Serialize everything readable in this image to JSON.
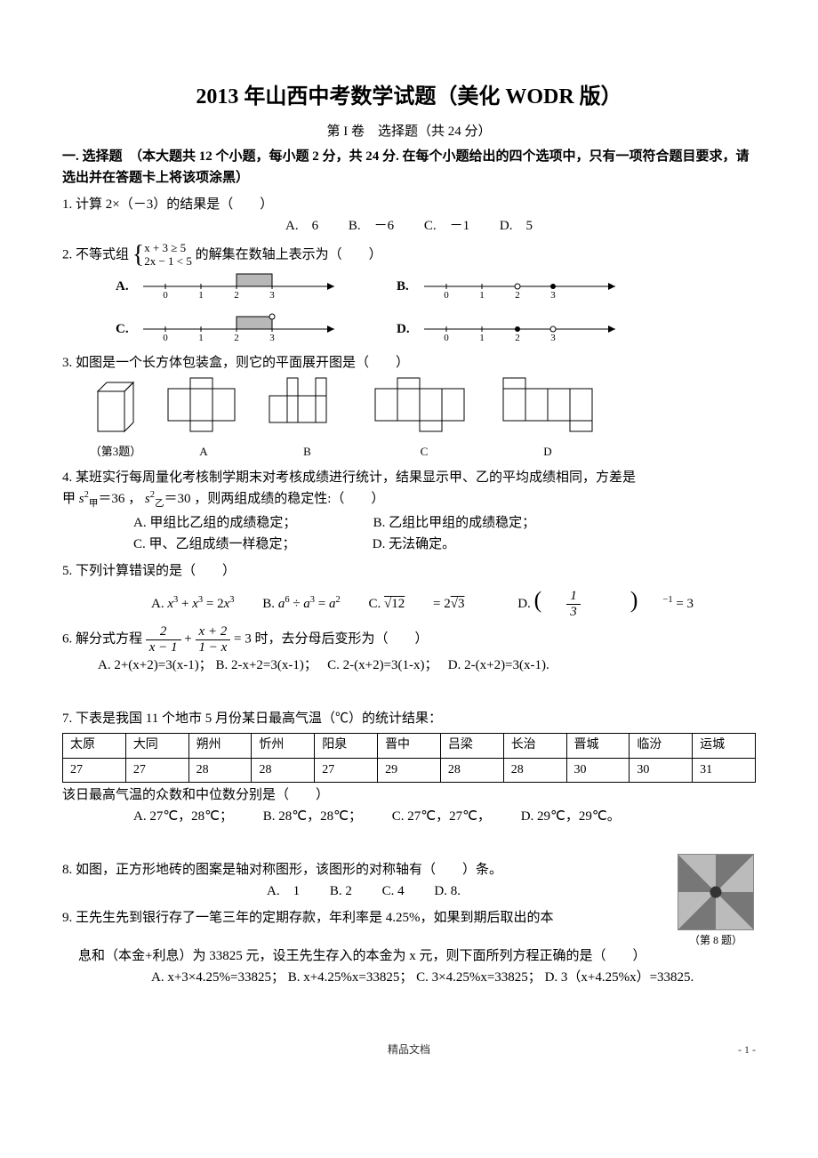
{
  "title": "2013 年山西中考数学试题（美化 WODR 版）",
  "subtitle": "第 I 卷　选择题（共 24 分）",
  "section1_head": "一. 选择题　（本大题共 12 个小题，每小题 2 分，共 24 分. 在每个小题给出的四个选项中，只有一项符合题目要求，请选出并在答题卡上将该项涂黑）",
  "q1": {
    "stem": "1. 计算 2×（－3）的结果是（　　）",
    "A": "A.　6",
    "B": "B.　－6",
    "C": "C.　－1",
    "D": "D.　5"
  },
  "q2": {
    "stem_a": "2. 不等式组",
    "line1": "x + 3 ≥ 5",
    "line2": "2x − 1 < 5",
    "stem_b": "的解集在数轴上表示为（　　）",
    "labels": {
      "A": "A.",
      "B": "B.",
      "C": "C.",
      "D": "D."
    },
    "ticks": [
      "0",
      "1",
      "2",
      "3"
    ]
  },
  "q3": {
    "stem": "3. 如图是一个长方体包装盒，则它的平面展开图是（　　）",
    "cap": "（第3题）",
    "labels": {
      "A": "A",
      "B": "B",
      "C": "C",
      "D": "D"
    }
  },
  "q4": {
    "stem_a": "4. 某班实行每周量化考核制学期末对考核成绩进行统计，结果显示甲、乙的平均成绩相同，方差是",
    "stem_b": "＝36 ，",
    "stem_c": "＝30 ，则两组成绩的稳定性:（　　）",
    "A": "A. 甲组比乙组的成绩稳定；",
    "B": "B. 乙组比甲组的成绩稳定；",
    "C": "C. 甲、乙组成绩一样稳定；",
    "D": "D. 无法确定。"
  },
  "q5": {
    "stem": "5. 下列计算错误的是（　　）"
  },
  "q6": {
    "stem_a": "6. 解分式方程",
    "stem_b": "时，去分母后变形为（　　）",
    "A": "A. 2+(x+2)=3(x-1)；",
    "B": "B. 2-x+2=3(x-1)；",
    "C": "C. 2-(x+2)=3(1-x)；",
    "D": "D. 2-(x+2)=3(x-1)."
  },
  "q7": {
    "stem": "7. 下表是我国 11 个地市 5 月份某日最高气温（℃）的统计结果：",
    "cities": [
      "太原",
      "大同",
      "朔州",
      "忻州",
      "阳泉",
      "晋中",
      "吕梁",
      "长治",
      "晋城",
      "临汾",
      "运城"
    ],
    "temps": [
      "27",
      "27",
      "28",
      "28",
      "27",
      "29",
      "28",
      "28",
      "30",
      "30",
      "31"
    ],
    "tail": "该日最高气温的众数和中位数分别是（　　）",
    "A": "A. 27℃，28℃；",
    "B": "B. 28℃，28℃；",
    "C": "C. 27℃，27℃，",
    "D": "D. 29℃，29℃。"
  },
  "q8": {
    "stem": "8. 如图，正方形地砖的图案是轴对称图形，该图形的对称轴有（　　）条。",
    "A": "A.　1",
    "B": "B. 2",
    "C": "C. 4",
    "D": "D. 8.",
    "cap": "（第 8 题）"
  },
  "q9": {
    "line1": "9. 王先生先到银行存了一笔三年的定期存款，年利率是 4.25%，如果到期后取出的本",
    "line2": "息和（本金+利息）为 33825 元，设王先生存入的本金为 x 元，则下面所列方程正确的是（　　）",
    "A": "A. x+3×4.25%=33825；",
    "B": "B. x+4.25%x=33825；",
    "C": "C. 3×4.25%x=33825；",
    "D": "D. 3（x+4.25%x）=33825."
  },
  "footer": "精品文档",
  "pagenum": "- 1 -"
}
